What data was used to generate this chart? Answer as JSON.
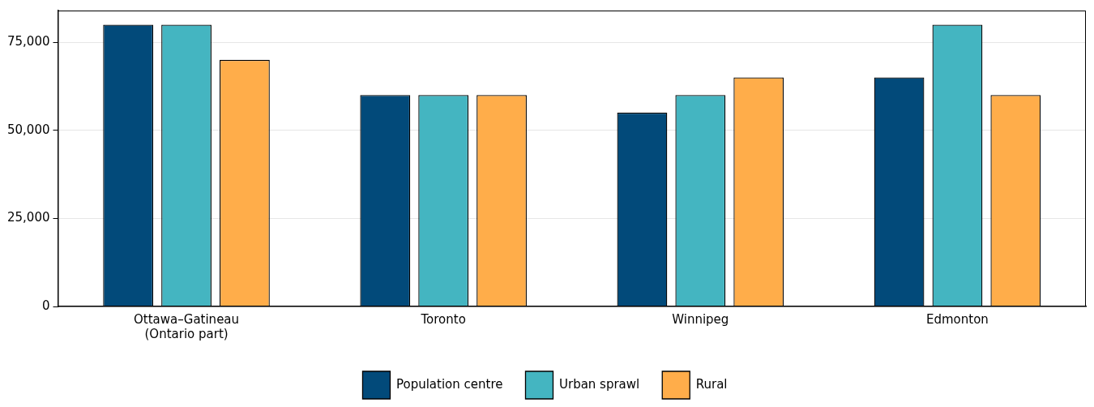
{
  "chart_data": {
    "type": "bar",
    "categories": [
      "Ottawa–Gatineau\n(Ontario part)",
      "Toronto",
      "Winnipeg",
      "Edmonton"
    ],
    "series": [
      {
        "name": "Population centre",
        "color": "#024a7a",
        "values": [
          80000,
          60000,
          55000,
          65000
        ]
      },
      {
        "name": "Urban sprawl",
        "color": "#44b5c1",
        "values": [
          80000,
          60000,
          60000,
          80000
        ]
      },
      {
        "name": "Rural",
        "color": "#ffad4a",
        "values": [
          70000,
          60000,
          65000,
          60000
        ]
      }
    ],
    "ylim": [
      0,
      84000
    ],
    "yticks": [
      {
        "value": 0,
        "label": "0"
      },
      {
        "value": 25000,
        "label": "25,000"
      },
      {
        "value": 50000,
        "label": "50,000"
      },
      {
        "value": 75000,
        "label": "75,000"
      }
    ],
    "grid": "y",
    "legend": "bottom"
  }
}
